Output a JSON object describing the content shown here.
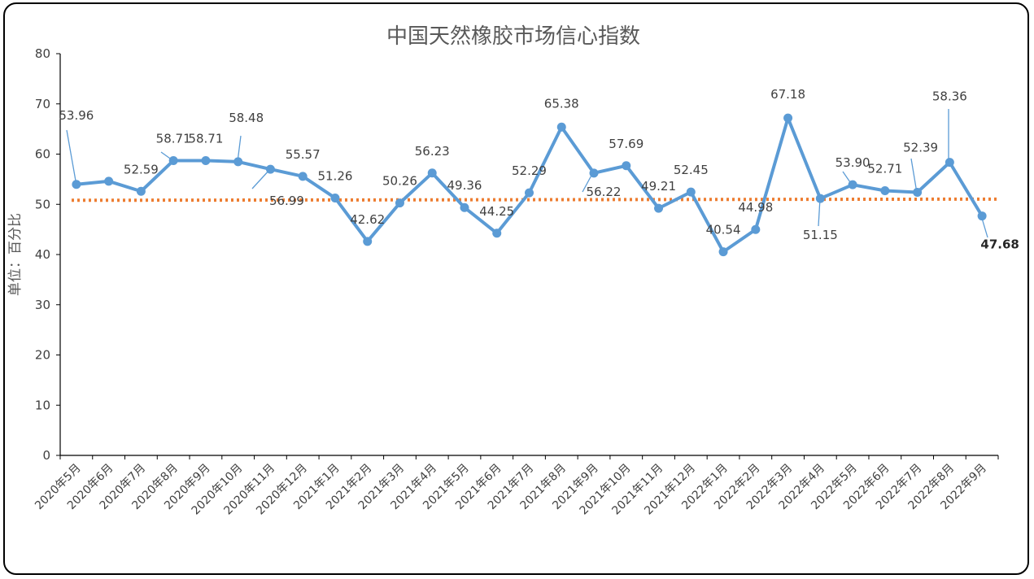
{
  "chart_data": {
    "type": "line",
    "title": "中国天然橡胶市场信心指数",
    "ylabel": "单位：百分比",
    "xlabel": "",
    "ylim": [
      0,
      80
    ],
    "yticks": [
      0,
      10,
      20,
      30,
      40,
      50,
      60,
      70,
      80
    ],
    "grid": false,
    "categories": [
      "2020年5月",
      "2020年6月",
      "2020年7月",
      "2020年8月",
      "2020年9月",
      "2020年10月",
      "2020年11月",
      "2020年12月",
      "2021年1月",
      "2021年2月",
      "2021年3月",
      "2021年4月",
      "2021年5月",
      "2021年6月",
      "2021年7月",
      "2021年8月",
      "2021年9月",
      "2021年10月",
      "2021年11月",
      "2021年12月",
      "2022年1月",
      "2022年2月",
      "2022年3月",
      "2022年4月",
      "2022年5月",
      "2022年6月",
      "2022年7月",
      "2022年8月",
      "2022年9月"
    ],
    "series": [
      {
        "values": [
          53.96,
          54.6,
          52.59,
          58.71,
          58.71,
          58.48,
          56.99,
          55.57,
          51.26,
          42.62,
          50.26,
          56.23,
          49.36,
          44.25,
          52.29,
          65.38,
          56.22,
          57.69,
          49.21,
          52.45,
          40.54,
          44.98,
          67.18,
          51.15,
          53.9,
          52.71,
          52.39,
          58.36,
          47.68
        ],
        "labels": [
          "53.96",
          "",
          "52.59",
          "58.71",
          "58.71",
          "58.48",
          "56.99",
          "55.57",
          "51.26",
          "42.62",
          "50.26",
          "56.23",
          "49.36",
          "44.25",
          "52.29",
          "65.38",
          "56.22",
          "57.69",
          "49.21",
          "52.45",
          "40.54",
          "44.98",
          "67.18",
          "51.15",
          "53.90",
          "52.71",
          "52.39",
          "58.36",
          "47.68"
        ],
        "color": "#5b9bd5"
      }
    ],
    "reference_line": {
      "value": 50.8,
      "color": "#ed7d31",
      "style": "dotted"
    }
  }
}
